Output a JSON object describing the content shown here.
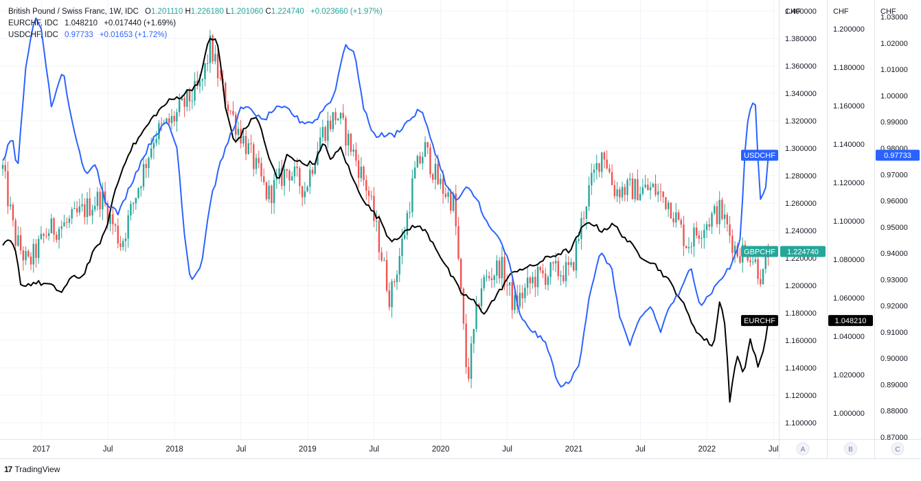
{
  "legend": {
    "gbp": {
      "name": "British Pound / Swiss Franc, 1W, IDC",
      "o_label": "O",
      "o": "1.201110",
      "h_label": "H",
      "h": "1.226180",
      "l_label": "L",
      "l": "1.201060",
      "c_label": "C",
      "c": "1.224740",
      "change": "+0.023660 (+1.97%)"
    },
    "eur": {
      "name": "EURCHF, IDC",
      "value": "1.048210",
      "change": "+0.017440 (+1.69%)"
    },
    "usd": {
      "name": "USDCHF, IDC",
      "value": "0.97733",
      "change": "+0.01653 (+1.72%)"
    }
  },
  "footer": {
    "logo": "17",
    "brand": "TradingView"
  },
  "chart_data": {
    "type": "line",
    "title": "British Pound / Swiss Franc, 1W, IDC",
    "time_labels": [
      "2017",
      "Jul",
      "2018",
      "Jul",
      "2019",
      "Jul",
      "2020",
      "Jul",
      "2021",
      "Jul",
      "2022",
      "Jul"
    ],
    "x_range": [
      2016.71,
      2022.54
    ],
    "axes": [
      {
        "id": "A",
        "currency": "CHF",
        "series": "GBPCHF",
        "ylim": [
          1.088,
          1.406
        ],
        "ticks": [
          "1.100000",
          "1.120000",
          "1.140000",
          "1.160000",
          "1.180000",
          "1.200000",
          "1.220000",
          "1.240000",
          "1.260000",
          "1.280000",
          "1.300000",
          "1.320000",
          "1.340000",
          "1.360000",
          "1.380000",
          "1.400000"
        ]
      },
      {
        "id": "B",
        "currency": "CHF",
        "series": "EURCHF",
        "ylim": [
          0.9865,
          1.2135
        ],
        "ticks": [
          "1.000000",
          "1.020000",
          "1.040000",
          "1.060000",
          "1.080000",
          "1.100000",
          "1.120000",
          "1.140000",
          "1.160000",
          "1.180000",
          "1.200000"
        ]
      },
      {
        "id": "C",
        "currency": "CHF",
        "series": "USDCHF",
        "ylim": [
          0.8692,
          1.0354
        ],
        "ticks": [
          "0.87000",
          "0.88000",
          "0.89000",
          "0.90000",
          "0.91000",
          "0.92000",
          "0.93000",
          "0.94000",
          "0.95000",
          "0.96000",
          "0.97000",
          "0.98000",
          "0.99000",
          "1.00000",
          "1.01000",
          "1.02000",
          "1.03000"
        ]
      }
    ],
    "series": [
      {
        "name": "GBPCHF",
        "type": "candlestick",
        "axis": "A",
        "color_up": "#26a69a",
        "color_down": "#ef5350",
        "tag": "GBPCHF",
        "last": "1.224740",
        "anchors": [
          [
            2016.71,
            1.285
          ],
          [
            2016.8,
            1.235
          ],
          [
            2016.9,
            1.215
          ],
          [
            2017.05,
            1.24
          ],
          [
            2017.2,
            1.245
          ],
          [
            2017.32,
            1.255
          ],
          [
            2017.45,
            1.265
          ],
          [
            2017.6,
            1.23
          ],
          [
            2017.72,
            1.27
          ],
          [
            2017.85,
            1.31
          ],
          [
            2017.98,
            1.32
          ],
          [
            2018.1,
            1.335
          ],
          [
            2018.2,
            1.345
          ],
          [
            2018.27,
            1.375
          ],
          [
            2018.35,
            1.345
          ],
          [
            2018.45,
            1.32
          ],
          [
            2018.55,
            1.3
          ],
          [
            2018.7,
            1.265
          ],
          [
            2018.85,
            1.285
          ],
          [
            2018.98,
            1.27
          ],
          [
            2019.1,
            1.31
          ],
          [
            2019.22,
            1.325
          ],
          [
            2019.33,
            1.3
          ],
          [
            2019.45,
            1.27
          ],
          [
            2019.55,
            1.225
          ],
          [
            2019.62,
            1.19
          ],
          [
            2019.72,
            1.235
          ],
          [
            2019.8,
            1.28
          ],
          [
            2019.88,
            1.3
          ],
          [
            2019.98,
            1.275
          ],
          [
            2020.1,
            1.26
          ],
          [
            2020.2,
            1.13
          ],
          [
            2020.3,
            1.2
          ],
          [
            2020.45,
            1.215
          ],
          [
            2020.55,
            1.185
          ],
          [
            2020.7,
            1.205
          ],
          [
            2020.85,
            1.21
          ],
          [
            2020.98,
            1.21
          ],
          [
            2021.1,
            1.265
          ],
          [
            2021.22,
            1.3
          ],
          [
            2021.3,
            1.27
          ],
          [
            2021.45,
            1.27
          ],
          [
            2021.6,
            1.27
          ],
          [
            2021.72,
            1.26
          ],
          [
            2021.85,
            1.23
          ],
          [
            2021.98,
            1.245
          ],
          [
            2022.1,
            1.255
          ],
          [
            2022.22,
            1.225
          ],
          [
            2022.32,
            1.225
          ],
          [
            2022.42,
            1.205
          ],
          [
            2022.46,
            1.225
          ]
        ]
      },
      {
        "name": "EURCHF",
        "type": "line",
        "axis": "B",
        "color": "#000000",
        "tag": "EURCHF",
        "last": "1.048210",
        "anchors": [
          [
            2016.71,
            1.086
          ],
          [
            2016.75,
            1.09
          ],
          [
            2016.8,
            1.086
          ],
          [
            2016.85,
            1.066
          ],
          [
            2016.95,
            1.068
          ],
          [
            2017.05,
            1.067
          ],
          [
            2017.15,
            1.063
          ],
          [
            2017.25,
            1.072
          ],
          [
            2017.3,
            1.07
          ],
          [
            2017.38,
            1.082
          ],
          [
            2017.48,
            1.094
          ],
          [
            2017.55,
            1.115
          ],
          [
            2017.65,
            1.135
          ],
          [
            2017.75,
            1.145
          ],
          [
            2017.85,
            1.155
          ],
          [
            2017.95,
            1.162
          ],
          [
            2018.05,
            1.165
          ],
          [
            2018.15,
            1.17
          ],
          [
            2018.2,
            1.175
          ],
          [
            2018.26,
            1.196
          ],
          [
            2018.32,
            1.193
          ],
          [
            2018.35,
            1.18
          ],
          [
            2018.38,
            1.16
          ],
          [
            2018.45,
            1.14
          ],
          [
            2018.55,
            1.15
          ],
          [
            2018.62,
            1.155
          ],
          [
            2018.7,
            1.135
          ],
          [
            2018.78,
            1.12
          ],
          [
            2018.85,
            1.135
          ],
          [
            2018.95,
            1.13
          ],
          [
            2019.05,
            1.13
          ],
          [
            2019.12,
            1.14
          ],
          [
            2019.18,
            1.132
          ],
          [
            2019.25,
            1.138
          ],
          [
            2019.35,
            1.12
          ],
          [
            2019.45,
            1.108
          ],
          [
            2019.55,
            1.1
          ],
          [
            2019.62,
            1.09
          ],
          [
            2019.72,
            1.093
          ],
          [
            2019.8,
            1.098
          ],
          [
            2019.88,
            1.095
          ],
          [
            2019.95,
            1.088
          ],
          [
            2020.05,
            1.075
          ],
          [
            2020.15,
            1.063
          ],
          [
            2020.25,
            1.058
          ],
          [
            2020.32,
            1.052
          ],
          [
            2020.42,
            1.061
          ],
          [
            2020.5,
            1.07
          ],
          [
            2020.58,
            1.075
          ],
          [
            2020.68,
            1.076
          ],
          [
            2020.78,
            1.08
          ],
          [
            2020.88,
            1.083
          ],
          [
            2020.98,
            1.085
          ],
          [
            2021.05,
            1.095
          ],
          [
            2021.12,
            1.1
          ],
          [
            2021.2,
            1.095
          ],
          [
            2021.3,
            1.098
          ],
          [
            2021.4,
            1.09
          ],
          [
            2021.5,
            1.082
          ],
          [
            2021.6,
            1.078
          ],
          [
            2021.7,
            1.07
          ],
          [
            2021.8,
            1.06
          ],
          [
            2021.88,
            1.048
          ],
          [
            2021.95,
            1.04
          ],
          [
            2022.05,
            1.035
          ],
          [
            2022.1,
            1.06
          ],
          [
            2022.14,
            1.045
          ],
          [
            2022.17,
            1.005
          ],
          [
            2022.22,
            1.03
          ],
          [
            2022.28,
            1.02
          ],
          [
            2022.32,
            1.04
          ],
          [
            2022.38,
            1.025
          ],
          [
            2022.42,
            1.03
          ],
          [
            2022.46,
            1.048
          ]
        ]
      },
      {
        "name": "USDCHF",
        "type": "line",
        "axis": "C",
        "color": "#2962ff",
        "tag": "USDCHF",
        "last": "0.97733",
        "anchors": [
          [
            2016.71,
            0.975
          ],
          [
            2016.78,
            0.985
          ],
          [
            2016.82,
            0.97
          ],
          [
            2016.88,
            1.01
          ],
          [
            2016.95,
            1.03
          ],
          [
            2017.0,
            1.025
          ],
          [
            2017.08,
            0.995
          ],
          [
            2017.16,
            1.01
          ],
          [
            2017.25,
            0.985
          ],
          [
            2017.33,
            0.97
          ],
          [
            2017.4,
            0.975
          ],
          [
            2017.48,
            0.96
          ],
          [
            2017.58,
            0.955
          ],
          [
            2017.66,
            0.965
          ],
          [
            2017.75,
            0.975
          ],
          [
            2017.85,
            0.985
          ],
          [
            2017.95,
            0.99
          ],
          [
            2018.02,
            0.98
          ],
          [
            2018.08,
            0.945
          ],
          [
            2018.12,
            0.93
          ],
          [
            2018.2,
            0.935
          ],
          [
            2018.27,
            0.96
          ],
          [
            2018.35,
            0.975
          ],
          [
            2018.42,
            0.985
          ],
          [
            2018.5,
            0.995
          ],
          [
            2018.58,
            0.995
          ],
          [
            2018.66,
            0.99
          ],
          [
            2018.75,
            0.995
          ],
          [
            2018.85,
            0.995
          ],
          [
            2018.95,
            0.99
          ],
          [
            2019.05,
            0.99
          ],
          [
            2019.12,
            0.995
          ],
          [
            2019.2,
            1.0
          ],
          [
            2019.28,
            1.02
          ],
          [
            2019.36,
            1.015
          ],
          [
            2019.42,
            0.995
          ],
          [
            2019.5,
            0.985
          ],
          [
            2019.58,
            0.985
          ],
          [
            2019.65,
            0.985
          ],
          [
            2019.75,
            0.99
          ],
          [
            2019.85,
            0.995
          ],
          [
            2019.95,
            0.98
          ],
          [
            2020.05,
            0.965
          ],
          [
            2020.12,
            0.96
          ],
          [
            2020.2,
            0.965
          ],
          [
            2020.28,
            0.96
          ],
          [
            2020.36,
            0.95
          ],
          [
            2020.45,
            0.945
          ],
          [
            2020.52,
            0.935
          ],
          [
            2020.6,
            0.915
          ],
          [
            2020.7,
            0.91
          ],
          [
            2020.8,
            0.905
          ],
          [
            2020.88,
            0.89
          ],
          [
            2020.96,
            0.89
          ],
          [
            2021.04,
            0.898
          ],
          [
            2021.12,
            0.925
          ],
          [
            2021.2,
            0.94
          ],
          [
            2021.28,
            0.935
          ],
          [
            2021.35,
            0.915
          ],
          [
            2021.42,
            0.905
          ],
          [
            2021.5,
            0.915
          ],
          [
            2021.58,
            0.92
          ],
          [
            2021.65,
            0.91
          ],
          [
            2021.72,
            0.92
          ],
          [
            2021.8,
            0.925
          ],
          [
            2021.88,
            0.935
          ],
          [
            2021.95,
            0.92
          ],
          [
            2022.03,
            0.925
          ],
          [
            2022.1,
            0.93
          ],
          [
            2022.18,
            0.935
          ],
          [
            2022.25,
            0.945
          ],
          [
            2022.3,
            0.99
          ],
          [
            2022.36,
            1.0
          ],
          [
            2022.4,
            0.96
          ],
          [
            2022.44,
            0.965
          ],
          [
            2022.46,
            0.977
          ]
        ]
      }
    ],
    "axis_letters": [
      "A",
      "B",
      "C"
    ]
  }
}
